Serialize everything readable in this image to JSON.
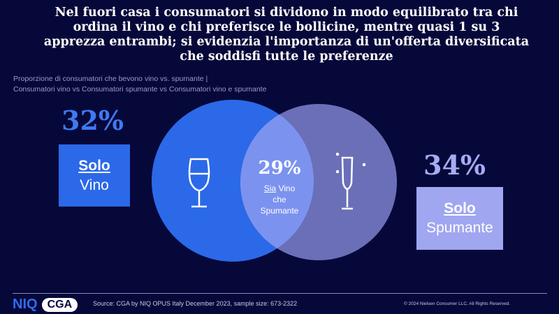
{
  "title": "Nel fuori casa i consumatori si dividono in modo equilibrato tra chi ordina il vino e chi preferisce le bollicine, mentre quasi 1 su 3 apprezza entrambi; si evidenzia l'importanza di un'offerta diversificata che soddisfi tutte le preferenze",
  "subtitle": {
    "line1": "Proporzione di consumatori che bevono vino vs. spumante |",
    "line2": "Consumatori vino vs Consumatori spumante vs Consumatori  vino e spumante"
  },
  "left": {
    "percent": "32%",
    "label_bold": "Solo",
    "label": "Vino",
    "color": "#2b69e8",
    "icon": "wine-glass-icon"
  },
  "right": {
    "percent": "34%",
    "label_bold": "Solo",
    "label": "Spumante",
    "color": "#6a6fb8",
    "icon": "champagne-flute-icon"
  },
  "overlap": {
    "percent": "29%",
    "label_bold": "Sia",
    "label1": "Vino",
    "label2": "che",
    "label3": "Spumante",
    "color": "#7b93ef"
  },
  "footer": {
    "logo_niq": "NIQ",
    "logo_cga": "CGA",
    "source": "Source: CGA by NIQ OPUS Italy December  2023, sample size: 673-2322",
    "copyright": "© 2024 Nielsen Consumer LLC. All Rights Reserved."
  }
}
